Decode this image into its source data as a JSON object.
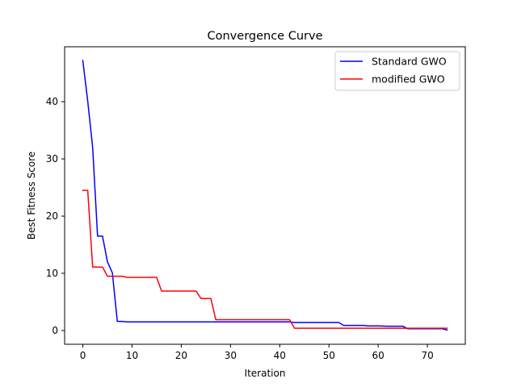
{
  "chart_data": {
    "type": "line",
    "title": "Convergence Curve",
    "xlabel": "Iteration",
    "ylabel": "Best Fitness Score",
    "xlim": [
      -3.7,
      77.7
    ],
    "ylim": [
      -2.4,
      49.6
    ],
    "xticks": [
      0,
      10,
      20,
      30,
      40,
      50,
      60,
      70
    ],
    "yticks": [
      0,
      10,
      20,
      30,
      40
    ],
    "grid": false,
    "legend_position": "top-right",
    "series": [
      {
        "name": "Standard GWO",
        "color": "#0000ff",
        "x": [
          0,
          1,
          2,
          3,
          4,
          5,
          6,
          7,
          8,
          9,
          10,
          15,
          20,
          25,
          30,
          35,
          40,
          42,
          43,
          50,
          52,
          53,
          55,
          57,
          58,
          60,
          62,
          65,
          66,
          70,
          73,
          74
        ],
        "y": [
          47.2,
          40.1,
          32.0,
          16.5,
          16.5,
          12.0,
          10.1,
          1.6,
          1.6,
          1.5,
          1.5,
          1.5,
          1.5,
          1.5,
          1.5,
          1.5,
          1.5,
          1.5,
          1.4,
          1.4,
          1.4,
          0.9,
          0.9,
          0.9,
          0.8,
          0.8,
          0.75,
          0.75,
          0.3,
          0.3,
          0.3,
          0.1
        ]
      },
      {
        "name": "modified GWO",
        "color": "#ff0000",
        "x": [
          0,
          1,
          2,
          3,
          4,
          5,
          6,
          7,
          8,
          9,
          10,
          14,
          15,
          16,
          20,
          22,
          23,
          24,
          25,
          26,
          27,
          30,
          35,
          40,
          42,
          43,
          50,
          60,
          65,
          70,
          74
        ],
        "y": [
          24.5,
          24.5,
          11.1,
          11.1,
          11.1,
          9.5,
          9.5,
          9.5,
          9.5,
          9.3,
          9.3,
          9.3,
          9.3,
          6.9,
          6.9,
          6.9,
          6.9,
          5.6,
          5.6,
          5.6,
          1.9,
          1.9,
          1.9,
          1.9,
          1.9,
          0.4,
          0.4,
          0.4,
          0.4,
          0.4,
          0.4
        ]
      }
    ]
  }
}
